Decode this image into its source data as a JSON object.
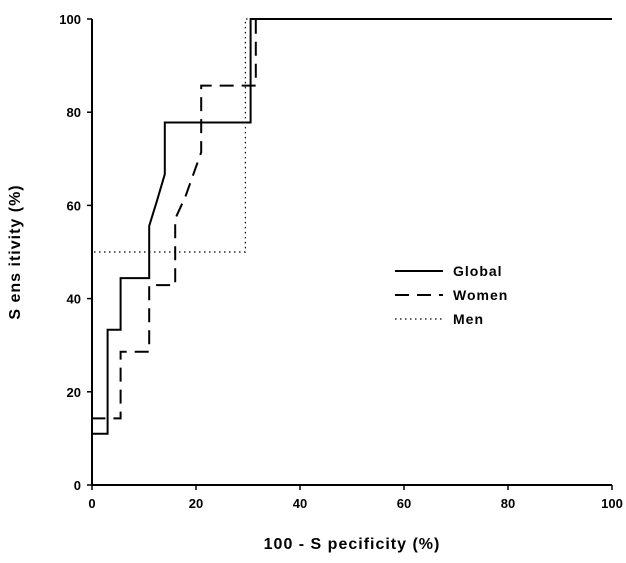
{
  "chart_data": {
    "type": "line",
    "title": "",
    "xlabel": "100 - S pecificity (%)",
    "ylabel": "S ens itivity (%)",
    "xlim": [
      0,
      100
    ],
    "ylim": [
      0,
      100
    ],
    "xticks": [
      0,
      20,
      40,
      60,
      80,
      100
    ],
    "yticks": [
      0,
      20,
      40,
      60,
      80,
      100
    ],
    "grid": false,
    "legend_position": "center-right",
    "series": [
      {
        "name": "Global",
        "style": "solid",
        "color": "#000000",
        "x": [
          0,
          0,
          3,
          3,
          5.5,
          5.5,
          11,
          11,
          12.5,
          14,
          14,
          30.5,
          30.5,
          100
        ],
        "y": [
          0,
          11,
          11,
          33.3,
          33.3,
          44.4,
          44.4,
          55.6,
          61,
          66.7,
          77.8,
          77.8,
          100,
          100
        ]
      },
      {
        "name": "Women",
        "style": "dashed",
        "color": "#000000",
        "x": [
          0,
          0,
          5.5,
          5.5,
          11,
          11,
          16,
          16,
          18,
          21,
          21,
          31.5,
          31.5,
          100
        ],
        "y": [
          0,
          14.3,
          14.3,
          28.6,
          28.6,
          42.9,
          42.9,
          57.1,
          62,
          71.4,
          85.7,
          85.7,
          100,
          100
        ]
      },
      {
        "name": "Men",
        "style": "dotted",
        "color": "#000000",
        "x": [
          0,
          0,
          29.5,
          29.5,
          100
        ],
        "y": [
          0,
          50,
          50,
          100,
          100
        ]
      }
    ]
  }
}
